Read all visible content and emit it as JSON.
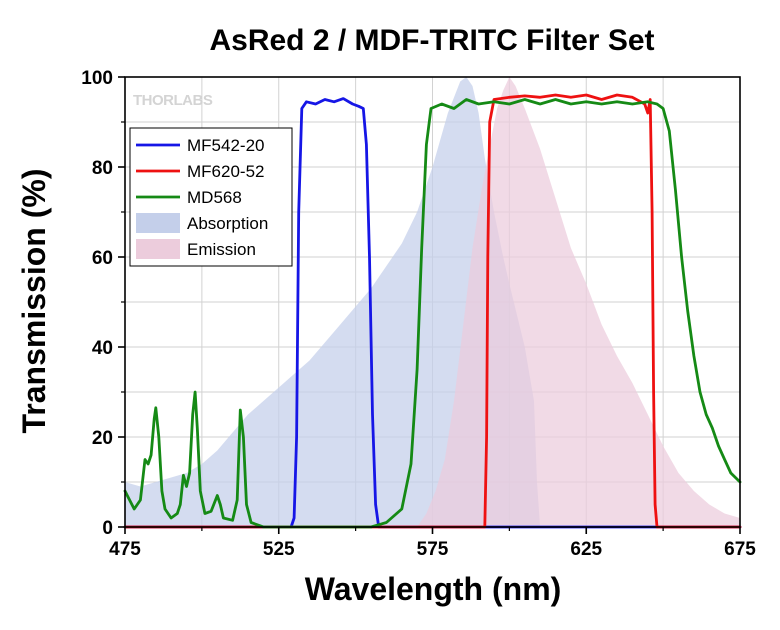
{
  "chart_data": {
    "type": "line",
    "title": "AsRed 2 / MDF-TRITC Filter Set",
    "xlabel": "Wavelength (nm)",
    "ylabel": "Transmission (%)",
    "xlim": [
      475,
      675
    ],
    "ylim": [
      0,
      100
    ],
    "xticks": [
      475,
      525,
      575,
      625,
      675
    ],
    "yticks": [
      0,
      20,
      40,
      60,
      80,
      100
    ],
    "grid": true,
    "legend_position": "top-left",
    "logo_text": "THORLABS",
    "series": [
      {
        "name": "MF542-20",
        "kind": "line",
        "color": "#1616e6",
        "points": [
          [
            475,
            0
          ],
          [
            529,
            0
          ],
          [
            530,
            2
          ],
          [
            530.8,
            20
          ],
          [
            531.5,
            70
          ],
          [
            532.5,
            93
          ],
          [
            534,
            94.5
          ],
          [
            537,
            94
          ],
          [
            540,
            95
          ],
          [
            543,
            94.5
          ],
          [
            546,
            95.2
          ],
          [
            549,
            94
          ],
          [
            551,
            93.5
          ],
          [
            552.5,
            93
          ],
          [
            553.5,
            85
          ],
          [
            554.5,
            60
          ],
          [
            555.5,
            25
          ],
          [
            556.5,
            5
          ],
          [
            557.5,
            0
          ],
          [
            675,
            0
          ]
        ]
      },
      {
        "name": "MF620-52",
        "kind": "line",
        "color": "#ee1111",
        "points": [
          [
            475,
            0
          ],
          [
            592,
            0
          ],
          [
            592.6,
            20
          ],
          [
            593,
            60
          ],
          [
            593.6,
            90
          ],
          [
            595,
            95
          ],
          [
            600,
            95.5
          ],
          [
            605,
            95.8
          ],
          [
            610,
            95.5
          ],
          [
            615,
            96
          ],
          [
            620,
            95.5
          ],
          [
            625,
            96
          ],
          [
            630,
            95
          ],
          [
            635,
            96
          ],
          [
            640,
            95.5
          ],
          [
            644,
            94
          ],
          [
            645,
            92
          ],
          [
            645.8,
            95
          ],
          [
            646.4,
            70
          ],
          [
            646.9,
            30
          ],
          [
            647.4,
            5
          ],
          [
            648,
            0
          ],
          [
            675,
            0
          ]
        ]
      },
      {
        "name": "MD568",
        "kind": "line",
        "color": "#158a15",
        "points": [
          [
            475,
            8
          ],
          [
            478,
            4
          ],
          [
            480,
            6
          ],
          [
            481.5,
            15
          ],
          [
            482.5,
            14
          ],
          [
            483.5,
            16
          ],
          [
            484.5,
            24
          ],
          [
            485,
            26.5
          ],
          [
            486,
            20
          ],
          [
            487,
            8
          ],
          [
            488,
            4
          ],
          [
            490,
            2
          ],
          [
            492,
            3
          ],
          [
            493,
            5
          ],
          [
            494,
            11.5
          ],
          [
            495,
            9
          ],
          [
            496,
            12
          ],
          [
            497,
            25
          ],
          [
            497.8,
            30
          ],
          [
            498.5,
            22
          ],
          [
            499.5,
            8
          ],
          [
            501,
            3
          ],
          [
            503,
            3.5
          ],
          [
            505,
            7
          ],
          [
            506,
            5
          ],
          [
            507,
            2
          ],
          [
            510,
            1.5
          ],
          [
            511.5,
            6
          ],
          [
            512.5,
            26
          ],
          [
            513.5,
            20
          ],
          [
            514.5,
            5
          ],
          [
            516,
            1
          ],
          [
            520,
            0
          ],
          [
            555,
            0
          ],
          [
            560,
            1
          ],
          [
            565,
            4
          ],
          [
            568,
            14
          ],
          [
            570,
            35
          ],
          [
            571.5,
            62
          ],
          [
            573,
            85
          ],
          [
            574.5,
            93
          ],
          [
            578,
            94
          ],
          [
            582,
            93
          ],
          [
            586,
            95
          ],
          [
            590,
            94
          ],
          [
            595,
            94.5
          ],
          [
            600,
            94
          ],
          [
            605,
            95
          ],
          [
            610,
            94
          ],
          [
            615,
            95
          ],
          [
            620,
            94
          ],
          [
            625,
            94.5
          ],
          [
            630,
            94
          ],
          [
            635,
            94.5
          ],
          [
            640,
            94
          ],
          [
            645,
            94.5
          ],
          [
            648,
            94
          ],
          [
            650,
            93
          ],
          [
            652,
            88
          ],
          [
            654,
            75
          ],
          [
            656,
            60
          ],
          [
            658,
            48
          ],
          [
            660,
            38
          ],
          [
            662,
            30
          ],
          [
            664,
            25
          ],
          [
            666,
            22
          ],
          [
            668,
            18
          ],
          [
            670,
            15
          ],
          [
            672,
            12
          ],
          [
            675,
            10
          ]
        ]
      },
      {
        "name": "Absorption",
        "kind": "area",
        "color": "#c4cfea",
        "points": [
          [
            475,
            10
          ],
          [
            480,
            9
          ],
          [
            485,
            10
          ],
          [
            490,
            11
          ],
          [
            495,
            12
          ],
          [
            500,
            14
          ],
          [
            505,
            17
          ],
          [
            510,
            21
          ],
          [
            515,
            25
          ],
          [
            520,
            28
          ],
          [
            525,
            31
          ],
          [
            530,
            34
          ],
          [
            535,
            37
          ],
          [
            540,
            41
          ],
          [
            545,
            45
          ],
          [
            550,
            49
          ],
          [
            555,
            53
          ],
          [
            560,
            58
          ],
          [
            565,
            63
          ],
          [
            570,
            70
          ],
          [
            575,
            80
          ],
          [
            580,
            92
          ],
          [
            584,
            99
          ],
          [
            586,
            100
          ],
          [
            588,
            98
          ],
          [
            590,
            92
          ],
          [
            592,
            82
          ],
          [
            595,
            70
          ],
          [
            598,
            60
          ],
          [
            600,
            54
          ],
          [
            605,
            40
          ],
          [
            608,
            28
          ],
          [
            609,
            10
          ],
          [
            610,
            0
          ],
          [
            675,
            0
          ]
        ]
      },
      {
        "name": "Emission",
        "kind": "area",
        "color": "#ecccdc",
        "points": [
          [
            570,
            0
          ],
          [
            573,
            3
          ],
          [
            576,
            8
          ],
          [
            579,
            15
          ],
          [
            582,
            28
          ],
          [
            585,
            45
          ],
          [
            588,
            62
          ],
          [
            591,
            75
          ],
          [
            594,
            86
          ],
          [
            596,
            93
          ],
          [
            598,
            97
          ],
          [
            600,
            100
          ],
          [
            602,
            98
          ],
          [
            605,
            93
          ],
          [
            610,
            84
          ],
          [
            615,
            73
          ],
          [
            620,
            62
          ],
          [
            625,
            54
          ],
          [
            630,
            45
          ],
          [
            635,
            38
          ],
          [
            640,
            32
          ],
          [
            645,
            25
          ],
          [
            650,
            18
          ],
          [
            655,
            12
          ],
          [
            660,
            8
          ],
          [
            665,
            5
          ],
          [
            670,
            3
          ],
          [
            675,
            2
          ]
        ]
      }
    ]
  }
}
